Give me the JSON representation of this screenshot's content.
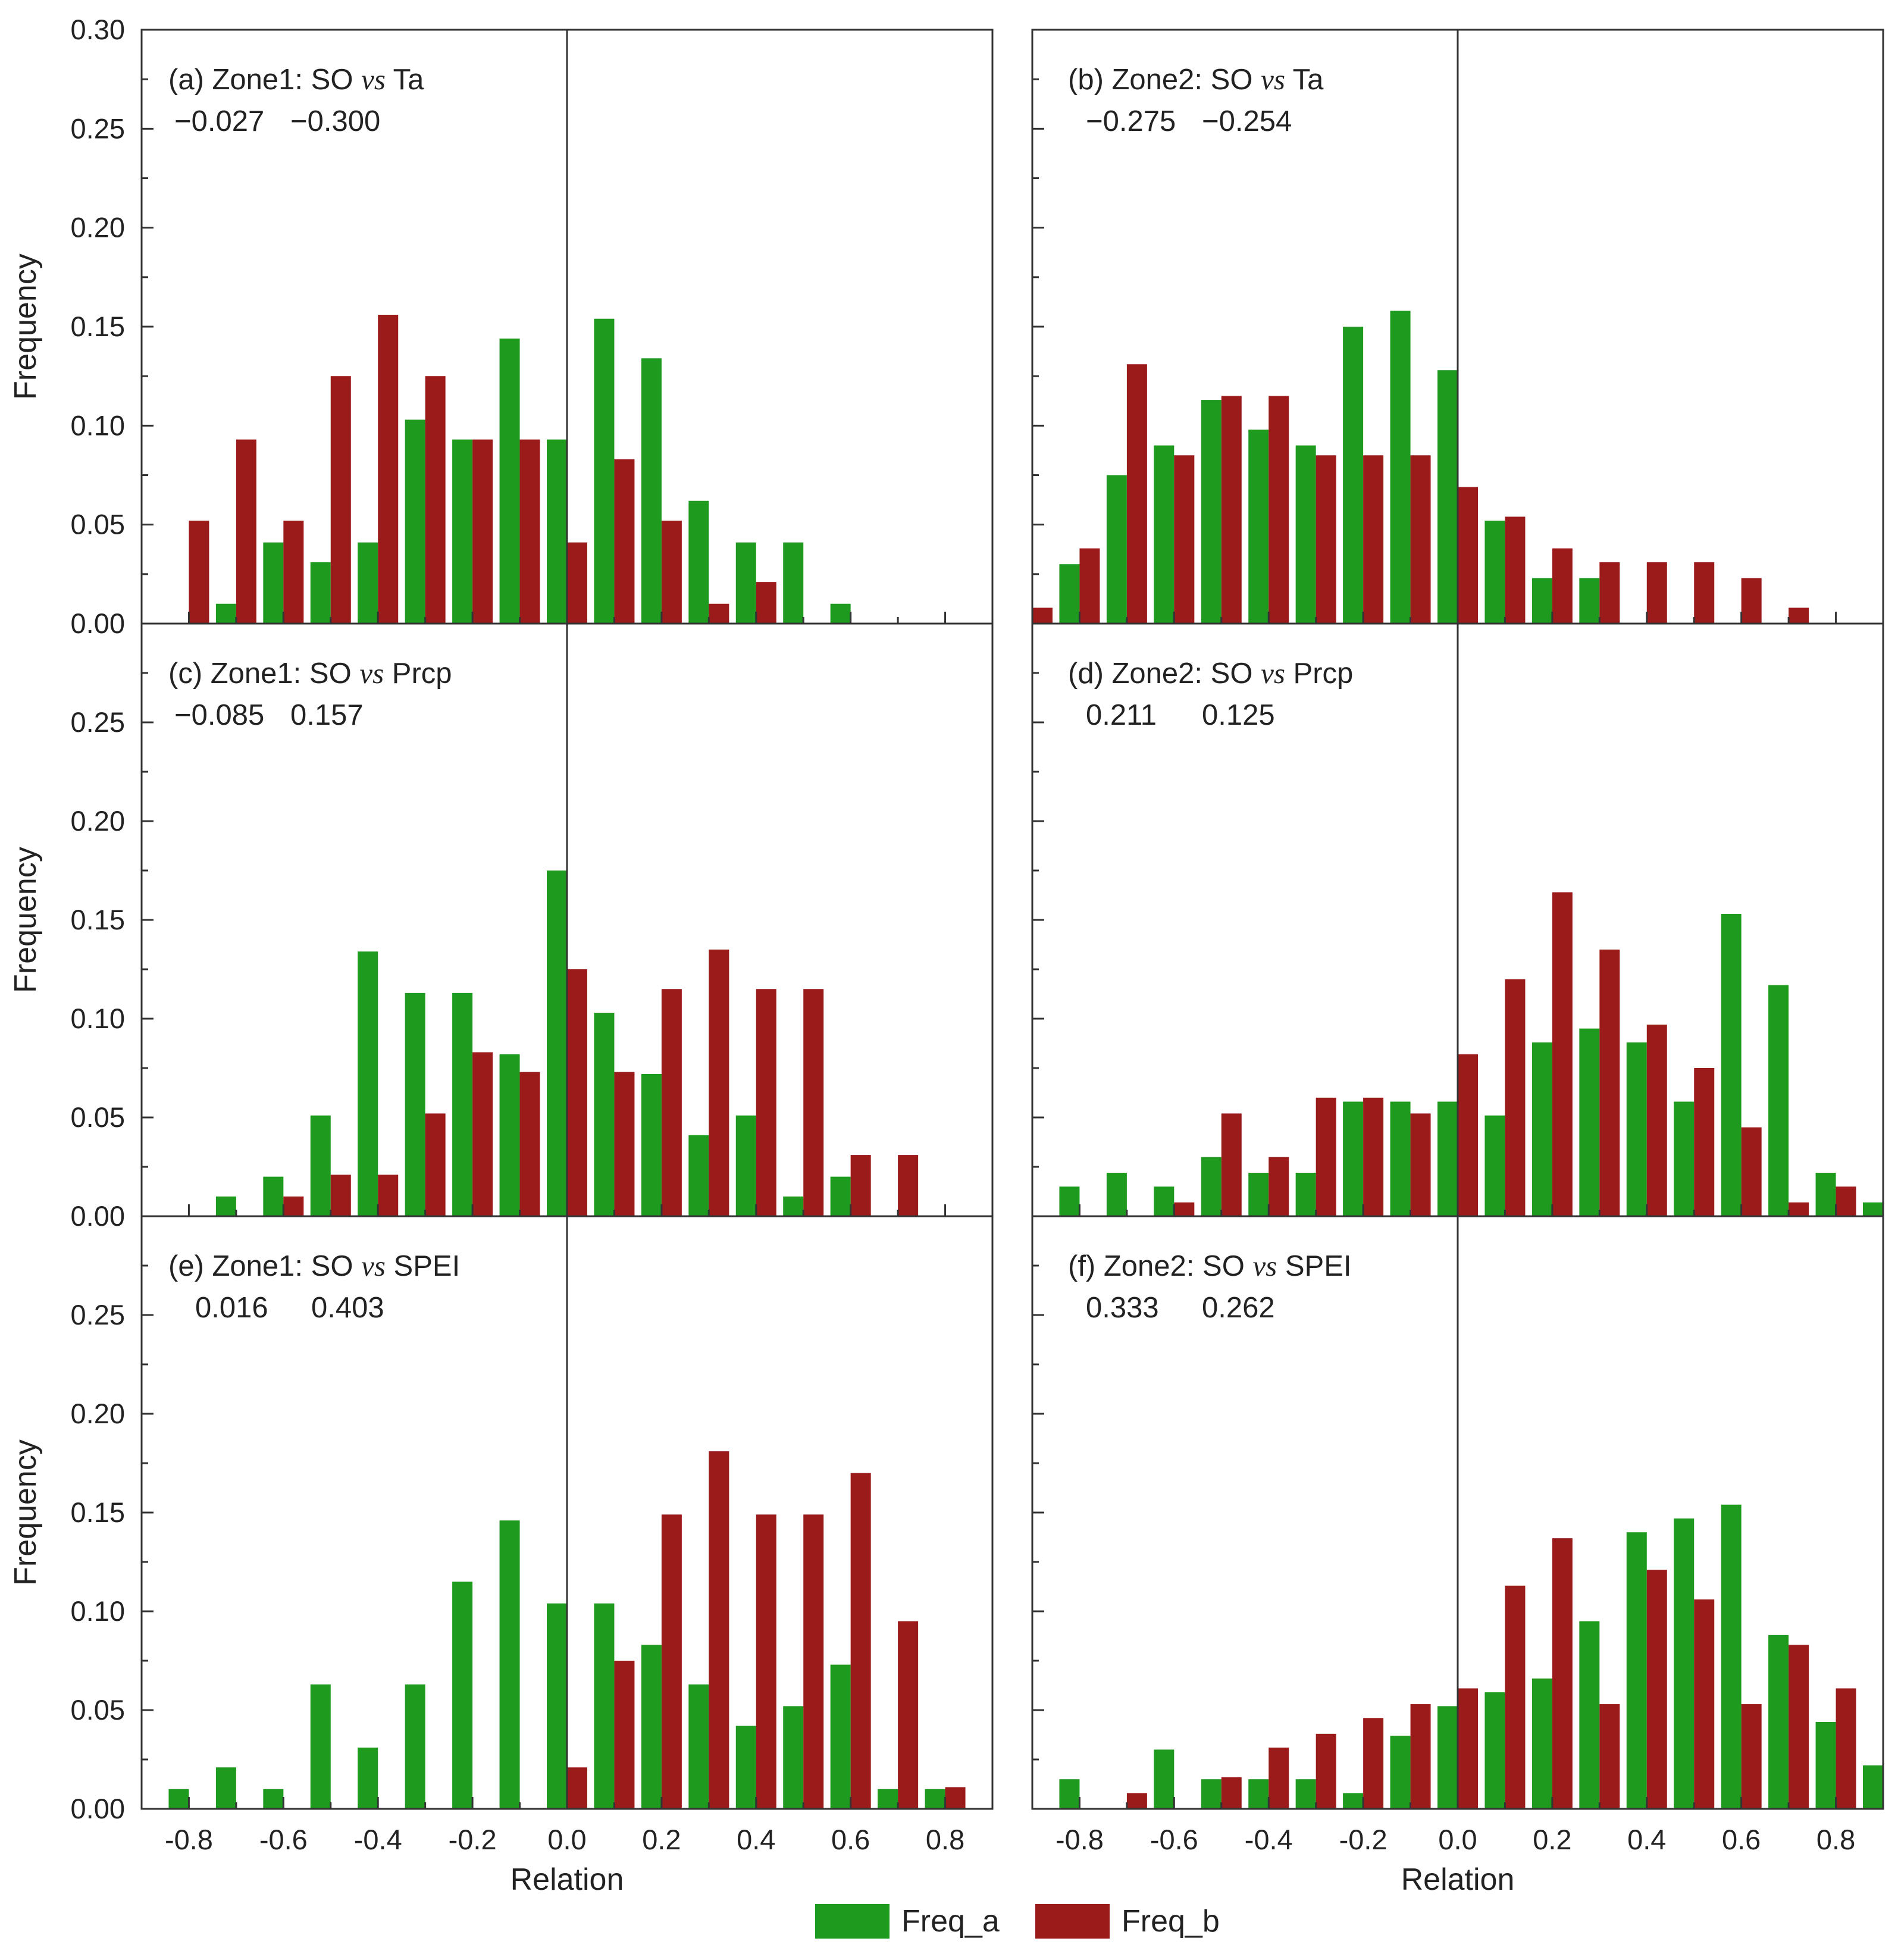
{
  "chart_data": {
    "type": "bar",
    "layout": "3 rows x 2 columns of grouped bar histograms",
    "legend": {
      "position": "bottom",
      "items": [
        {
          "label": "Freq_a",
          "color": "#1e9a1e"
        },
        {
          "label": "Freq_b",
          "color": "#9b1b1b"
        }
      ]
    },
    "colors": {
      "freq_a": "#1e9a1e",
      "freq_b": "#9b1b1b",
      "axis": "#333333"
    },
    "xlabel": "Relation",
    "ylabel": "Frequency",
    "xlim": [
      -0.9,
      0.9
    ],
    "ylim": [
      0,
      0.3
    ],
    "x_ticks": [
      "-0.8",
      "-0.6",
      "-0.4",
      "-0.2",
      "0.0",
      "0.2",
      "0.4",
      "0.6",
      "0.8"
    ],
    "y_ticks_top": [
      "0.00",
      "0.05",
      "0.10",
      "0.15",
      "0.20",
      "0.25",
      "0.30"
    ],
    "y_ticks_other": [
      "0.00",
      "0.05",
      "0.10",
      "0.15",
      "0.20",
      "0.25"
    ],
    "panels": [
      {
        "title_prefix": "(a) Zone1: SO ",
        "title_vs": "vs",
        "title_suffix": " Ta",
        "stats": [
          "−0.027",
          "−0.300"
        ],
        "freq_a": {
          "x": [
            -0.7,
            -0.6,
            -0.5,
            -0.4,
            -0.3,
            -0.2,
            -0.1,
            0.0,
            0.1,
            0.2,
            0.3,
            0.4,
            0.5,
            0.6
          ],
          "values": [
            0.01,
            0.041,
            0.031,
            0.041,
            0.103,
            0.093,
            0.144,
            0.093,
            0.154,
            0.134,
            0.062,
            0.041,
            0.041,
            0.01
          ]
        },
        "freq_b": {
          "x": [
            -0.8,
            -0.7,
            -0.6,
            -0.5,
            -0.4,
            -0.3,
            -0.2,
            -0.1,
            0.0,
            0.1,
            0.2,
            0.3,
            0.4
          ],
          "values": [
            0.052,
            0.093,
            0.052,
            0.125,
            0.156,
            0.125,
            0.093,
            0.093,
            0.041,
            0.083,
            0.052,
            0.01,
            0.021
          ]
        }
      },
      {
        "title_prefix": "(b) Zone2: SO ",
        "title_vs": "vs",
        "title_suffix": " Ta",
        "stats": [
          "−0.275",
          "−0.254"
        ],
        "freq_a": {
          "x": [
            -0.8,
            -0.7,
            -0.6,
            -0.5,
            -0.4,
            -0.3,
            -0.2,
            -0.1,
            0.0,
            0.1,
            0.2,
            0.3
          ],
          "values": [
            0.03,
            0.075,
            0.09,
            0.113,
            0.098,
            0.09,
            0.15,
            0.158,
            0.128,
            0.052,
            0.023,
            0.023
          ]
        },
        "freq_b": {
          "x": [
            -0.9,
            -0.8,
            -0.7,
            -0.6,
            -0.5,
            -0.4,
            -0.3,
            -0.2,
            -0.1,
            0.0,
            0.1,
            0.2,
            0.3,
            0.4,
            0.5,
            0.6,
            0.7
          ],
          "values": [
            0.008,
            0.038,
            0.131,
            0.085,
            0.115,
            0.115,
            0.085,
            0.085,
            0.085,
            0.069,
            0.054,
            0.038,
            0.031,
            0.031,
            0.031,
            0.023,
            0.008
          ]
        }
      },
      {
        "title_prefix": "(c) Zone1: SO ",
        "title_vs": "vs",
        "title_suffix": " Prcp",
        "stats": [
          "−0.085",
          "0.157"
        ],
        "freq_a": {
          "x": [
            -0.7,
            -0.6,
            -0.5,
            -0.4,
            -0.3,
            -0.2,
            -0.1,
            0.0,
            0.1,
            0.2,
            0.3,
            0.4,
            0.5,
            0.6
          ],
          "values": [
            0.01,
            0.02,
            0.051,
            0.134,
            0.113,
            0.113,
            0.082,
            0.175,
            0.103,
            0.072,
            0.041,
            0.051,
            0.01,
            0.02
          ]
        },
        "freq_b": {
          "x": [
            -0.6,
            -0.5,
            -0.4,
            -0.3,
            -0.2,
            -0.1,
            0.0,
            0.1,
            0.2,
            0.3,
            0.4,
            0.5,
            0.6,
            0.7
          ],
          "values": [
            0.01,
            0.021,
            0.021,
            0.052,
            0.083,
            0.073,
            0.125,
            0.073,
            0.115,
            0.135,
            0.115,
            0.115,
            0.031,
            0.031
          ]
        }
      },
      {
        "title_prefix": "(d) Zone2: SO ",
        "title_vs": "vs",
        "title_suffix": " Prcp",
        "stats": [
          "0.211",
          "0.125"
        ],
        "freq_a": {
          "x": [
            -0.8,
            -0.7,
            -0.6,
            -0.5,
            -0.4,
            -0.3,
            -0.2,
            -0.1,
            0.0,
            0.1,
            0.2,
            0.3,
            0.4,
            0.5,
            0.6,
            0.7,
            0.8,
            0.9
          ],
          "values": [
            0.015,
            0.022,
            0.015,
            0.03,
            0.022,
            0.022,
            0.058,
            0.058,
            0.058,
            0.051,
            0.088,
            0.095,
            0.088,
            0.058,
            0.153,
            0.117,
            0.022,
            0.007
          ]
        },
        "freq_b": {
          "x": [
            -0.6,
            -0.5,
            -0.4,
            -0.3,
            -0.2,
            -0.1,
            0.0,
            0.1,
            0.2,
            0.3,
            0.4,
            0.5,
            0.6,
            0.7,
            0.8
          ],
          "values": [
            0.007,
            0.052,
            0.03,
            0.06,
            0.06,
            0.052,
            0.082,
            0.12,
            0.164,
            0.135,
            0.097,
            0.075,
            0.045,
            0.007,
            0.015
          ]
        }
      },
      {
        "title_prefix": "(e) Zone1: SO ",
        "title_vs": "vs",
        "title_suffix": " SPEI",
        "stats": [
          "0.016",
          "0.403"
        ],
        "freq_a": {
          "x": [
            -0.8,
            -0.7,
            -0.6,
            -0.5,
            -0.4,
            -0.3,
            -0.2,
            -0.1,
            0.0,
            0.1,
            0.2,
            0.3,
            0.4,
            0.5,
            0.6,
            0.7,
            0.8
          ],
          "values": [
            0.01,
            0.021,
            0.01,
            0.063,
            0.031,
            0.063,
            0.115,
            0.146,
            0.104,
            0.104,
            0.083,
            0.063,
            0.042,
            0.052,
            0.073,
            0.01,
            0.01
          ]
        },
        "freq_b": {
          "x": [
            0.0,
            0.1,
            0.2,
            0.3,
            0.4,
            0.5,
            0.6,
            0.7,
            0.8
          ],
          "values": [
            0.021,
            0.075,
            0.149,
            0.181,
            0.149,
            0.149,
            0.17,
            0.095,
            0.011
          ]
        }
      },
      {
        "title_prefix": "(f) Zone2: SO ",
        "title_vs": "vs",
        "title_suffix": " SPEI",
        "stats": [
          "0.333",
          "0.262"
        ],
        "freq_a": {
          "x": [
            -0.8,
            -0.6,
            -0.5,
            -0.4,
            -0.3,
            -0.2,
            -0.1,
            0.0,
            0.1,
            0.2,
            0.3,
            0.4,
            0.5,
            0.6,
            0.7,
            0.8,
            0.9
          ],
          "values": [
            0.015,
            0.03,
            0.015,
            0.015,
            0.015,
            0.008,
            0.037,
            0.052,
            0.059,
            0.066,
            0.095,
            0.14,
            0.147,
            0.154,
            0.088,
            0.044,
            0.022
          ]
        },
        "freq_b": {
          "x": [
            -0.7,
            -0.5,
            -0.4,
            -0.3,
            -0.2,
            -0.1,
            0.0,
            0.1,
            0.2,
            0.3,
            0.4,
            0.5,
            0.6,
            0.7,
            0.8
          ],
          "values": [
            0.008,
            0.016,
            0.031,
            0.038,
            0.046,
            0.053,
            0.061,
            0.113,
            0.137,
            0.053,
            0.121,
            0.106,
            0.053,
            0.083,
            0.061
          ]
        }
      }
    ]
  }
}
